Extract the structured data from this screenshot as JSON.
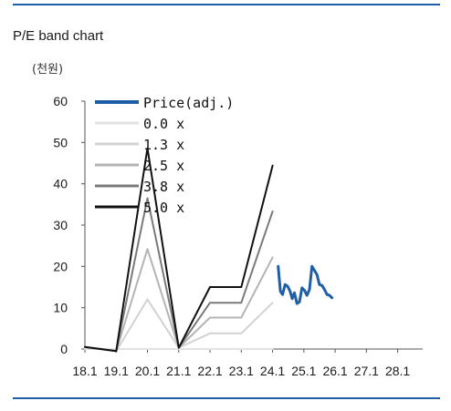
{
  "header": {
    "title": "P/E band chart"
  },
  "chart_data": {
    "type": "line",
    "unit_label": "(천원)",
    "ylim": [
      0,
      60
    ],
    "y_ticks": [
      "0",
      "10",
      "20",
      "30",
      "40",
      "50",
      "60"
    ],
    "x_ticks": [
      "18.1",
      "19.1",
      "20.1",
      "21.1",
      "22.1",
      "23.1",
      "24.1",
      "25.1",
      "26.1",
      "27.1",
      "28.1"
    ],
    "x_domain": [
      2018.0,
      2028.8
    ],
    "grid": false,
    "legend_position": "top-left",
    "series": [
      {
        "name": "Price(adj.)",
        "color": "#1f5fa8",
        "width": 3,
        "x": [
          2024.18,
          2024.25,
          2024.32,
          2024.4,
          2024.48,
          2024.56,
          2024.63,
          2024.7,
          2024.78,
          2024.86,
          2024.94,
          2025.02,
          2025.1,
          2025.18,
          2025.26,
          2025.34,
          2025.42,
          2025.5,
          2025.58,
          2025.66,
          2025.74,
          2025.82,
          2025.9
        ],
        "values": [
          20.0,
          14.0,
          13.2,
          15.6,
          15.2,
          14.0,
          12.2,
          13.6,
          11.0,
          11.4,
          14.8,
          14.2,
          13.0,
          14.4,
          20.0,
          19.0,
          18.0,
          15.6,
          15.4,
          14.4,
          13.2,
          13.0,
          12.4
        ]
      },
      {
        "name": "0.0 x",
        "color": "#e2e2e2",
        "width": 2,
        "x": [
          2018.0,
          2019.0,
          2020.0,
          2021.0,
          2022.0,
          2023.0,
          2024.0
        ],
        "values": [
          0,
          0,
          0,
          0,
          0,
          0,
          0
        ]
      },
      {
        "name": "1.3 x",
        "color": "#d2d2d2",
        "width": 2,
        "x": [
          2018.0,
          2019.0,
          2020.0,
          2021.0,
          2022.0,
          2023.0,
          2024.0
        ],
        "values": [
          0.5,
          -0.5,
          12.0,
          0.3,
          3.8,
          3.8,
          11.2
        ]
      },
      {
        "name": "2.5 x",
        "color": "#b4b4b4",
        "width": 2,
        "x": [
          2018.0,
          2019.0,
          2020.0,
          2021.0,
          2022.0,
          2023.0,
          2024.0
        ],
        "values": [
          0.5,
          -0.5,
          24.2,
          0.3,
          7.6,
          7.6,
          22.2
        ]
      },
      {
        "name": "3.8 x",
        "color": "#7a7a7a",
        "width": 2,
        "x": [
          2018.0,
          2019.0,
          2020.0,
          2021.0,
          2022.0,
          2023.0,
          2024.0
        ],
        "values": [
          0.5,
          -0.5,
          36.5,
          0.3,
          11.2,
          11.2,
          33.3
        ]
      },
      {
        "name": "5.0 x",
        "color": "#111111",
        "width": 2,
        "x": [
          2018.0,
          2019.0,
          2020.0,
          2021.0,
          2022.0,
          2023.0,
          2024.0
        ],
        "values": [
          0.5,
          -0.5,
          48.6,
          0.3,
          15.0,
          15.0,
          44.4
        ]
      }
    ]
  },
  "style": {
    "frame_rule_color": "#1f5fa8",
    "axis_color": "#555555"
  }
}
